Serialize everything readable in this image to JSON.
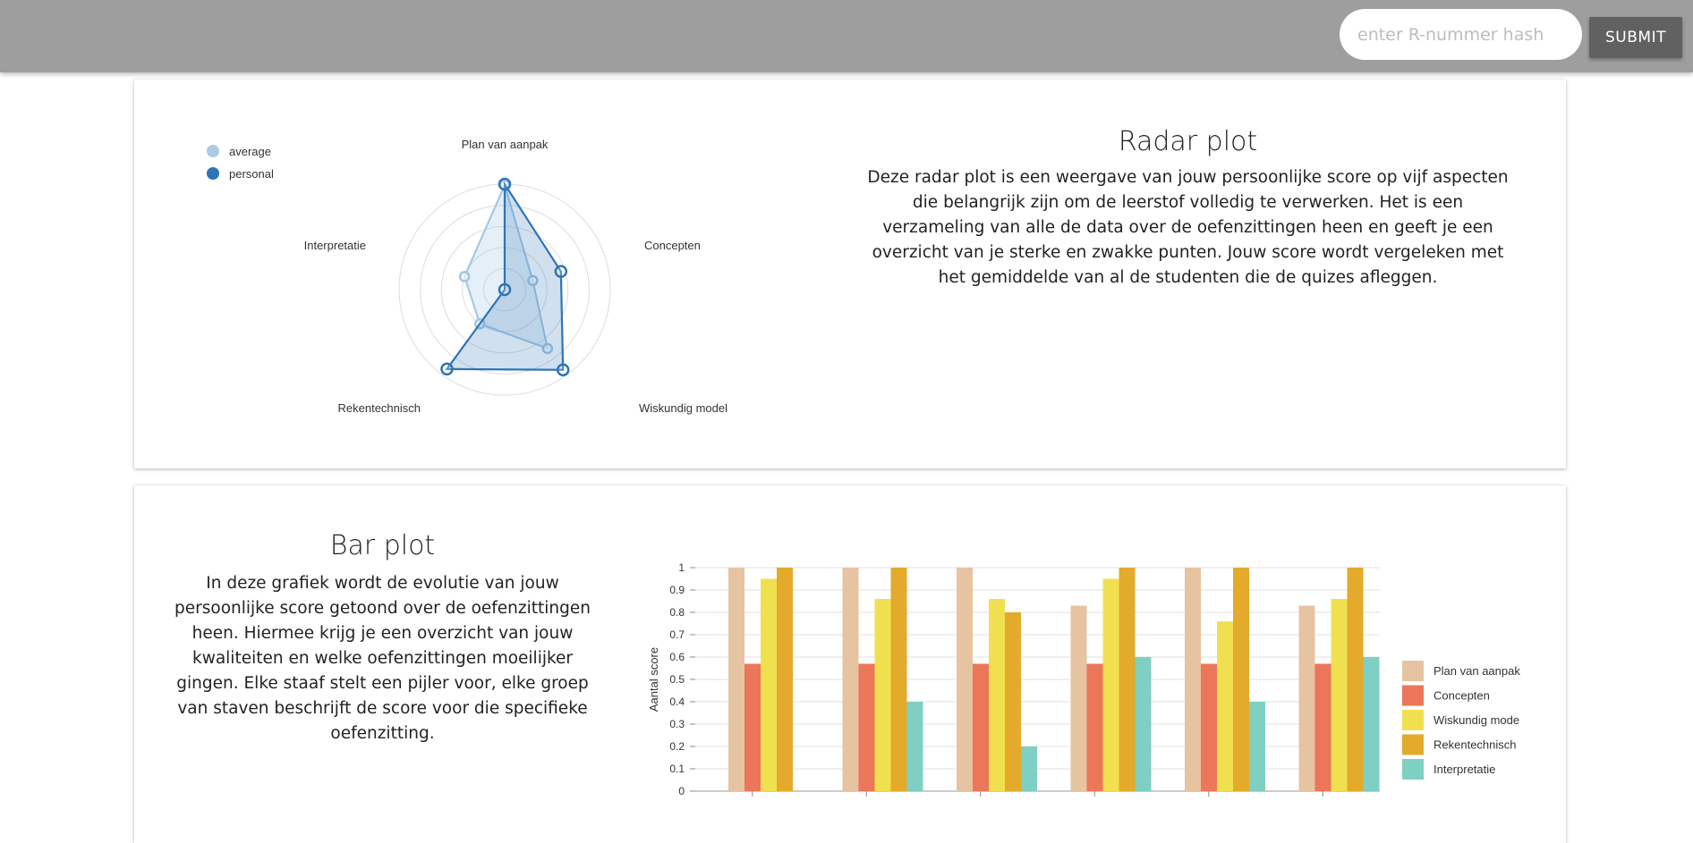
{
  "header": {
    "search_placeholder": "enter R-nummer hash",
    "submit_label": "SUBMIT"
  },
  "radar": {
    "title": "Radar plot",
    "description": "Deze radar plot is een weergave van jouw persoonlijke score op vijf aspecten die belangrijk zijn om de leerstof volledig te verwerken. Het is een verzameling van alle de data over de oefenzittingen heen en geeft je een overzicht van je sterke en zwakke punten. Jouw score wordt vergeleken met het gemiddelde van al de studenten die de quizes afleggen."
  },
  "barplot": {
    "title": "Bar plot",
    "description": "In deze grafiek wordt de evolutie van jouw persoonlijke score getoond over de oefenzittingen heen. Hiermee krijg je een overzicht van jouw kwaliteiten en welke oefenzittingen moeilijker gingen. Elke staaf stelt een pijler voor, elke groep van staven beschrijft de score voor die specifieke oefenzitting."
  },
  "chart_data": [
    {
      "type": "radar",
      "axes": [
        "Plan van aanpak",
        "Concepten",
        "Wiskundig model",
        "Rekentechnisch",
        "Interpretatie"
      ],
      "series": [
        {
          "name": "average",
          "values": [
            0.99,
            0.28,
            0.69,
            0.4,
            0.4
          ],
          "color": "#a9cbe6"
        },
        {
          "name": "personal",
          "values": [
            1.0,
            0.56,
            0.94,
            0.93,
            0.0
          ],
          "color": "#2f74b5"
        }
      ],
      "rlim": [
        0,
        1
      ],
      "legend": "top-left"
    },
    {
      "type": "bar",
      "categories": [
        "",
        "",
        "",
        "",
        "",
        ""
      ],
      "series": [
        {
          "name": "Plan van aanpak",
          "values": [
            1,
            1,
            1,
            0.83,
            1,
            0.83
          ],
          "color": "#e6c3a1"
        },
        {
          "name": "Concepten",
          "values": [
            0.57,
            0.57,
            0.57,
            0.57,
            0.57,
            0.57
          ],
          "color": "#eb7659"
        },
        {
          "name": "Wiskundig mode",
          "values": [
            0.95,
            0.86,
            0.86,
            0.95,
            0.76,
            0.86
          ],
          "color": "#f0e050"
        },
        {
          "name": "Rekentechnisch",
          "values": [
            1,
            1,
            0.8,
            1,
            1,
            1
          ],
          "color": "#e3aa2b"
        },
        {
          "name": "Interpretatie",
          "values": [
            0,
            0.4,
            0.2,
            0.6,
            0.4,
            0.6
          ],
          "color": "#7ed0c2"
        }
      ],
      "yticks": [
        "0",
        "0.1",
        "0.2",
        "0.3",
        "0.4",
        "0.5",
        "0.6",
        "0.7",
        "0.8",
        "0.9",
        "1"
      ],
      "ylabel": "Aantal score",
      "ylim": [
        0,
        1
      ],
      "grid": true,
      "legend": "right"
    }
  ]
}
